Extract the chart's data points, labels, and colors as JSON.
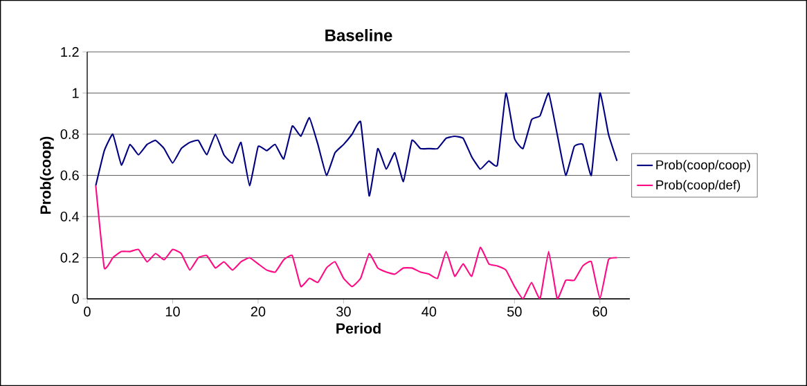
{
  "chart_data": {
    "type": "line",
    "title": "Baseline",
    "xlabel": "Period",
    "ylabel": "Prob(coop)",
    "x": [
      1,
      2,
      3,
      4,
      5,
      6,
      7,
      8,
      9,
      10,
      11,
      12,
      13,
      14,
      15,
      16,
      17,
      18,
      19,
      20,
      21,
      22,
      23,
      24,
      25,
      26,
      27,
      28,
      29,
      30,
      31,
      32,
      33,
      34,
      35,
      36,
      37,
      38,
      39,
      40,
      41,
      42,
      43,
      44,
      45,
      46,
      47,
      48,
      49,
      50,
      51,
      52,
      53,
      54,
      55,
      56,
      57,
      58,
      59,
      60,
      61,
      62
    ],
    "series": [
      {
        "name": "Prob(coop/coop)",
        "color": "#000080",
        "values": [
          0.55,
          0.72,
          0.8,
          0.65,
          0.75,
          0.7,
          0.75,
          0.77,
          0.73,
          0.66,
          0.73,
          0.76,
          0.77,
          0.7,
          0.8,
          0.7,
          0.66,
          0.76,
          0.55,
          0.74,
          0.72,
          0.75,
          0.68,
          0.84,
          0.79,
          0.88,
          0.75,
          0.6,
          0.71,
          0.75,
          0.8,
          0.86,
          0.5,
          0.73,
          0.63,
          0.71,
          0.57,
          0.77,
          0.73,
          0.73,
          0.73,
          0.78,
          0.79,
          0.78,
          0.69,
          0.63,
          0.67,
          0.65,
          1.0,
          0.78,
          0.73,
          0.87,
          0.89,
          1.0,
          0.8,
          0.6,
          0.74,
          0.75,
          0.6,
          1.0,
          0.8,
          0.67
        ]
      },
      {
        "name": "Prob(coop/def)",
        "color": "#ff0a85",
        "values": [
          0.55,
          0.15,
          0.2,
          0.23,
          0.23,
          0.24,
          0.18,
          0.22,
          0.19,
          0.24,
          0.22,
          0.14,
          0.2,
          0.21,
          0.15,
          0.18,
          0.14,
          0.18,
          0.2,
          0.17,
          0.14,
          0.13,
          0.19,
          0.21,
          0.06,
          0.1,
          0.08,
          0.15,
          0.18,
          0.1,
          0.06,
          0.1,
          0.22,
          0.15,
          0.13,
          0.12,
          0.15,
          0.15,
          0.13,
          0.12,
          0.1,
          0.23,
          0.11,
          0.17,
          0.11,
          0.25,
          0.17,
          0.16,
          0.14,
          0.06,
          0,
          0.08,
          0,
          0.23,
          0,
          0.09,
          0.09,
          0.16,
          0.18,
          0,
          0.19,
          0.2
        ]
      }
    ],
    "xlim": [
      0,
      63.5
    ],
    "xticks": [
      0,
      10,
      20,
      30,
      40,
      50,
      60
    ],
    "ylim": [
      0,
      1.2
    ],
    "yticks": [
      0,
      0.2,
      0.4,
      0.6,
      0.8,
      1,
      1.2
    ],
    "grid": "y",
    "legend": "right"
  }
}
